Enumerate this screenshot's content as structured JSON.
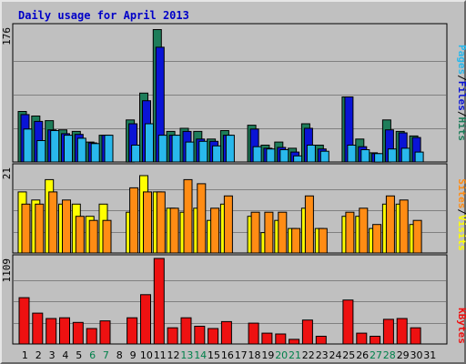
{
  "title": "Daily usage for April 2013",
  "colors": {
    "hits": "#1e7d5a",
    "files": "#0a14d6",
    "pages": "#29b8ec",
    "visits": "#ffff00",
    "sites": "#ff8c14",
    "kbytes": "#ee1111",
    "weekday_label": "#000000",
    "weekend_label": "#00804a",
    "separator": "#000000"
  },
  "legends": {
    "top": [
      "Pages",
      "/",
      "Files",
      "/",
      "Hits"
    ],
    "middle": [
      "Sites",
      "/",
      "Visits"
    ],
    "bottom": [
      "KBytes"
    ]
  },
  "chart_data": {
    "type": "bar",
    "title": "Daily usage for April 2013",
    "categories": [
      "1",
      "2",
      "3",
      "4",
      "5",
      "6",
      "7",
      "8",
      "9",
      "10",
      "11",
      "12",
      "13",
      "14",
      "15",
      "16",
      "17",
      "18",
      "19",
      "20",
      "21",
      "22",
      "23",
      "24",
      "25",
      "26",
      "27",
      "28",
      "29",
      "30",
      "31"
    ],
    "weekend_days": [
      "6",
      "7",
      "13",
      "14",
      "20",
      "21",
      "27",
      "28"
    ],
    "panels": [
      {
        "name": "hits-files-pages",
        "ymax_label": "176",
        "ylim": [
          0,
          176
        ],
        "series": [
          {
            "name": "Hits",
            "color_key": "hits",
            "values": [
              66,
              60,
              54,
              42,
              40,
              26,
              35,
              0,
              55,
              90,
              173,
              40,
              44,
              40,
              30,
              41,
              0,
              48,
              22,
              26,
              18,
              50,
              22,
              0,
              85,
              30,
              12,
              55,
              40,
              34,
              0
            ]
          },
          {
            "name": "Files",
            "color_key": "files",
            "values": [
              62,
              53,
              42,
              37,
              36,
              25,
              35,
              0,
              50,
              80,
              150,
              35,
              40,
              30,
              27,
              35,
              0,
              43,
              18,
              19,
              13,
              44,
              17,
              0,
              85,
              20,
              11,
              42,
              38,
              32,
              0
            ]
          },
          {
            "name": "Pages",
            "color_key": "pages",
            "values": [
              43,
              28,
              41,
              35,
              31,
              24,
              35,
              0,
              22,
              50,
              35,
              35,
              26,
              27,
              21,
              35,
              0,
              20,
              17,
              16,
              8,
              22,
              14,
              0,
              22,
              16,
              11,
              17,
              18,
              13,
              0
            ]
          }
        ]
      },
      {
        "name": "visits-sites",
        "ymax_label": "21",
        "ylim": [
          0,
          21
        ],
        "series": [
          {
            "name": "Visits",
            "color_key": "visits",
            "values": [
              15,
              13,
              18,
              12,
              12,
              9,
              12,
              0,
              10,
              19,
              15,
              11,
              10,
              11,
              8,
              12,
              0,
              9,
              5,
              8,
              6,
              11,
              6,
              0,
              9,
              9,
              6,
              12,
              12,
              7,
              0
            ]
          },
          {
            "name": "Sites",
            "color_key": "sites",
            "values": [
              12,
              12,
              15,
              13,
              9,
              8,
              8,
              0,
              16,
              15,
              15,
              11,
              18,
              17,
              11,
              14,
              0,
              10,
              10,
              10,
              6,
              14,
              6,
              0,
              10,
              11,
              7,
              14,
              13,
              8,
              0
            ]
          }
        ]
      },
      {
        "name": "kbytes",
        "ymax_label": "1109",
        "ylim": [
          0,
          1109
        ],
        "series": [
          {
            "name": "KBytes",
            "color_key": "kbytes",
            "values": [
              600,
              400,
              330,
              340,
              280,
              200,
              300,
              0,
              340,
              640,
              1109,
              210,
              340,
              230,
              200,
              290,
              0,
              270,
              140,
              130,
              60,
              310,
              100,
              0,
              570,
              140,
              100,
              320,
              330,
              210,
              0
            ]
          }
        ]
      }
    ]
  }
}
